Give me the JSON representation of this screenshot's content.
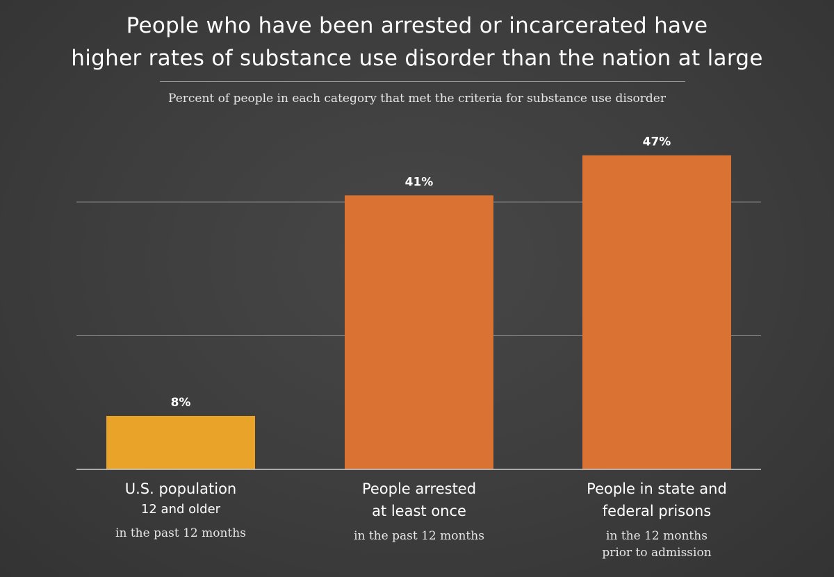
{
  "title_line1": "People who have been arrested or incarcerated have",
  "title_line2": "higher rates of substance use disorder than the nation at large",
  "subtitle": "Percent of people in each category that met the criteria for substance use disorder",
  "colors": {
    "bar_yellow": "#e8a328",
    "bar_orange": "#d97232",
    "gridline": "#8a8a8a",
    "baseline": "#cfcfcf"
  },
  "chart_data": {
    "type": "bar",
    "categories": [
      "U.S. population 12 and older",
      "People arrested at least once",
      "People in state and federal prisons"
    ],
    "values": [
      8,
      41,
      47
    ],
    "value_labels": [
      "8%",
      "41%",
      "47%"
    ],
    "unit": "%",
    "ylim": [
      0,
      50
    ],
    "gridlines": [
      20,
      40
    ],
    "grid": true,
    "legend": "none",
    "bar_colors": [
      "#e8a328",
      "#d97232",
      "#d97232"
    ]
  },
  "category_labels": [
    {
      "line1": "U.S. population",
      "line2": "12 and older",
      "note1": "in the past 12 months",
      "note2": ""
    },
    {
      "line1": "People arrested",
      "line2": "at least once",
      "note1": "in the past 12 months",
      "note2": ""
    },
    {
      "line1": "People in state and",
      "line2": "federal prisons",
      "note1": "in the 12 months",
      "note2": "prior to admission"
    }
  ]
}
